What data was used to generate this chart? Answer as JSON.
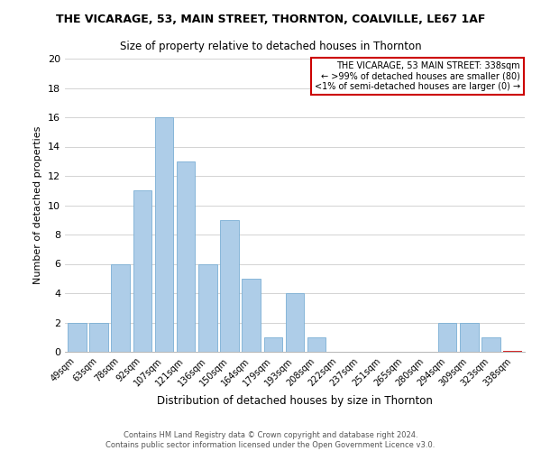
{
  "title": "THE VICARAGE, 53, MAIN STREET, THORNTON, COALVILLE, LE67 1AF",
  "subtitle": "Size of property relative to detached houses in Thornton",
  "xlabel": "Distribution of detached houses by size in Thornton",
  "ylabel": "Number of detached properties",
  "bar_color": "#aecde8",
  "bar_edge_color": "#7aafd4",
  "bin_labels": [
    "49sqm",
    "63sqm",
    "78sqm",
    "92sqm",
    "107sqm",
    "121sqm",
    "136sqm",
    "150sqm",
    "164sqm",
    "179sqm",
    "193sqm",
    "208sqm",
    "222sqm",
    "237sqm",
    "251sqm",
    "265sqm",
    "280sqm",
    "294sqm",
    "309sqm",
    "323sqm",
    "338sqm"
  ],
  "bar_heights": [
    2,
    2,
    6,
    11,
    16,
    13,
    6,
    9,
    5,
    1,
    4,
    1,
    0,
    0,
    0,
    0,
    0,
    2,
    2,
    1,
    0
  ],
  "ylim": [
    0,
    20
  ],
  "yticks": [
    0,
    2,
    4,
    6,
    8,
    10,
    12,
    14,
    16,
    18,
    20
  ],
  "legend_title": "THE VICARAGE, 53 MAIN STREET: 338sqm",
  "legend_line1": "← >99% of detached houses are smaller (80)",
  "legend_line2": "<1% of semi-detached houses are larger (0) →",
  "legend_box_color": "#ffffff",
  "legend_box_edge_color": "#cc0000",
  "footer_line1": "Contains HM Land Registry data © Crown copyright and database right 2024.",
  "footer_line2": "Contains public sector information licensed under the Open Government Licence v3.0.",
  "highlight_bar_index": 20,
  "highlight_bar_edge_color": "#cc0000"
}
